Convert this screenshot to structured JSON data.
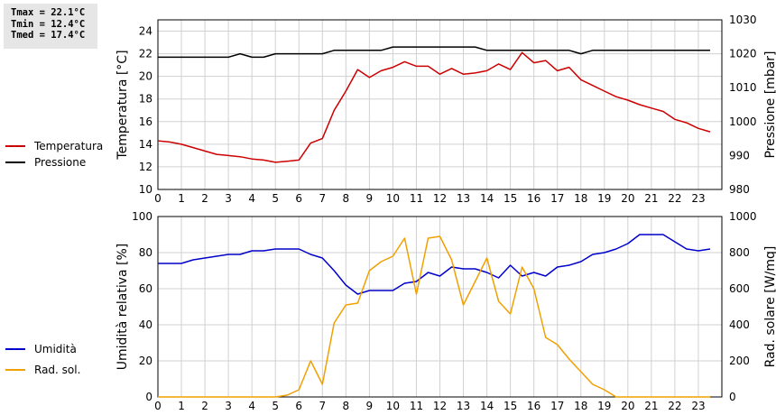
{
  "stats": {
    "tmax": "Tmax = 22.1°C",
    "tmin": "Tmin = 12.4°C",
    "tmed": "Tmed = 17.4°C"
  },
  "chart_data": [
    {
      "type": "line",
      "ylabel": "Temperatura [°C]",
      "ylabel_right": "Pressione [mbar]",
      "xlim": [
        0,
        24
      ],
      "ylim": [
        10,
        25
      ],
      "ylim_right": [
        980,
        1030
      ],
      "x_ticks": [
        "0",
        "1",
        "2",
        "3",
        "4",
        "5",
        "6",
        "7",
        "8",
        "9",
        "10",
        "11",
        "12",
        "13",
        "14",
        "15",
        "16",
        "17",
        "18",
        "19",
        "20",
        "21",
        "22",
        "23"
      ],
      "y_ticks": [
        "10",
        "12",
        "14",
        "16",
        "18",
        "20",
        "22",
        "24"
      ],
      "y_ticks_right": [
        "980",
        "990",
        "1000",
        "1010",
        "1020",
        "1030"
      ],
      "grid": true,
      "legend": "left",
      "series": [
        {
          "name": "Temperatura",
          "color": "#cc0000",
          "axis": "left",
          "x": [
            0,
            0.5,
            1,
            1.5,
            2,
            2.5,
            3,
            3.5,
            4,
            4.5,
            5,
            5.5,
            6,
            6.5,
            7,
            7.5,
            8,
            8.5,
            9,
            9.5,
            10,
            10.5,
            11,
            11.5,
            12,
            12.5,
            13,
            13.5,
            14,
            14.5,
            15,
            15.5,
            16,
            16.5,
            17,
            17.5,
            18,
            18.5,
            19,
            19.5,
            20,
            20.5,
            21,
            21.5,
            22,
            22.5,
            23,
            23.5
          ],
          "y": [
            14.3,
            14.2,
            14.0,
            13.7,
            13.4,
            13.1,
            13.0,
            12.9,
            12.7,
            12.6,
            12.4,
            12.5,
            12.6,
            14.1,
            14.5,
            17.0,
            18.7,
            20.6,
            19.9,
            20.5,
            20.8,
            21.3,
            20.9,
            20.9,
            20.2,
            20.7,
            20.2,
            20.3,
            20.5,
            21.1,
            20.6,
            22.1,
            21.2,
            21.4,
            20.5,
            20.8,
            19.7,
            19.2,
            18.7,
            18.2,
            17.9,
            17.5,
            17.2,
            16.9,
            16.2,
            15.9,
            15.4,
            15.1
          ]
        },
        {
          "name": "Pressione",
          "color": "#000000",
          "axis": "right",
          "x": [
            0,
            0.5,
            1,
            1.5,
            2,
            2.5,
            3,
            3.5,
            4,
            4.5,
            5,
            5.5,
            6,
            6.5,
            7,
            7.5,
            8,
            8.5,
            9,
            9.5,
            10,
            10.5,
            11,
            11.5,
            12,
            12.5,
            13,
            13.5,
            14,
            14.5,
            15,
            15.5,
            16,
            16.5,
            17,
            17.5,
            18,
            18.5,
            19,
            19.5,
            20,
            20.5,
            21,
            21.5,
            22,
            22.5,
            23,
            23.5
          ],
          "y": [
            1019,
            1019,
            1019,
            1019,
            1019,
            1019,
            1019,
            1020,
            1019,
            1019,
            1020,
            1020,
            1020,
            1020,
            1020,
            1021,
            1021,
            1021,
            1021,
            1021,
            1022,
            1022,
            1022,
            1022,
            1022,
            1022,
            1022,
            1022,
            1021,
            1021,
            1021,
            1021,
            1021,
            1021,
            1021,
            1021,
            1020,
            1021,
            1021,
            1021,
            1021,
            1021,
            1021,
            1021,
            1021,
            1021,
            1021,
            1021
          ]
        }
      ]
    },
    {
      "type": "line",
      "ylabel": "Umidità relativa [%]",
      "ylabel_right": "Rad. solare [W/mq]",
      "xlim": [
        0,
        24
      ],
      "ylim": [
        0,
        100
      ],
      "ylim_right": [
        0,
        1000
      ],
      "x_ticks": [
        "0",
        "1",
        "2",
        "3",
        "4",
        "5",
        "6",
        "7",
        "8",
        "9",
        "10",
        "11",
        "12",
        "13",
        "14",
        "15",
        "16",
        "17",
        "18",
        "19",
        "20",
        "21",
        "22",
        "23"
      ],
      "y_ticks": [
        "0",
        "20",
        "40",
        "60",
        "80",
        "100"
      ],
      "y_ticks_right": [
        "0",
        "200",
        "400",
        "600",
        "800",
        "1000"
      ],
      "grid": true,
      "legend": "left",
      "series": [
        {
          "name": "Umidità",
          "color": "#0000cc",
          "axis": "left",
          "x": [
            0,
            0.5,
            1,
            1.5,
            2,
            2.5,
            3,
            3.5,
            4,
            4.5,
            5,
            5.5,
            6,
            6.5,
            7,
            7.5,
            8,
            8.5,
            9,
            9.5,
            10,
            10.5,
            11,
            11.5,
            12,
            12.5,
            13,
            13.5,
            14,
            14.5,
            15,
            15.5,
            16,
            16.5,
            17,
            17.5,
            18,
            18.5,
            19,
            19.5,
            20,
            20.5,
            21,
            21.5,
            22,
            22.5,
            23,
            23.5
          ],
          "y": [
            74,
            74,
            74,
            76,
            77,
            78,
            79,
            79,
            81,
            81,
            82,
            82,
            82,
            79,
            77,
            70,
            62,
            57,
            59,
            59,
            59,
            63,
            64,
            69,
            67,
            72,
            71,
            71,
            69,
            66,
            73,
            67,
            69,
            67,
            72,
            73,
            75,
            79,
            80,
            82,
            85,
            90,
            90,
            90,
            86,
            82,
            81,
            82
          ]
        },
        {
          "name": "Rad. sol.",
          "color": "#f0a000",
          "axis": "right",
          "x": [
            0,
            0.5,
            1,
            1.5,
            2,
            2.5,
            3,
            3.5,
            4,
            4.5,
            5,
            5.5,
            6,
            6.5,
            7,
            7.5,
            8,
            8.5,
            9,
            9.5,
            10,
            10.5,
            11,
            11.5,
            12,
            12.5,
            13,
            13.5,
            14,
            14.5,
            15,
            15.5,
            16,
            16.5,
            17,
            17.5,
            18,
            18.5,
            19,
            19.5,
            20,
            20.5,
            21,
            21.5,
            22,
            22.5,
            23,
            23.5
          ],
          "y": [
            0,
            0,
            0,
            0,
            0,
            0,
            0,
            0,
            0,
            0,
            0,
            10,
            40,
            200,
            70,
            410,
            510,
            520,
            700,
            750,
            780,
            880,
            570,
            880,
            890,
            760,
            510,
            640,
            770,
            530,
            460,
            720,
            600,
            330,
            290,
            210,
            140,
            70,
            40,
            0,
            0,
            0,
            0,
            0,
            0,
            0,
            0,
            0
          ]
        }
      ]
    }
  ]
}
